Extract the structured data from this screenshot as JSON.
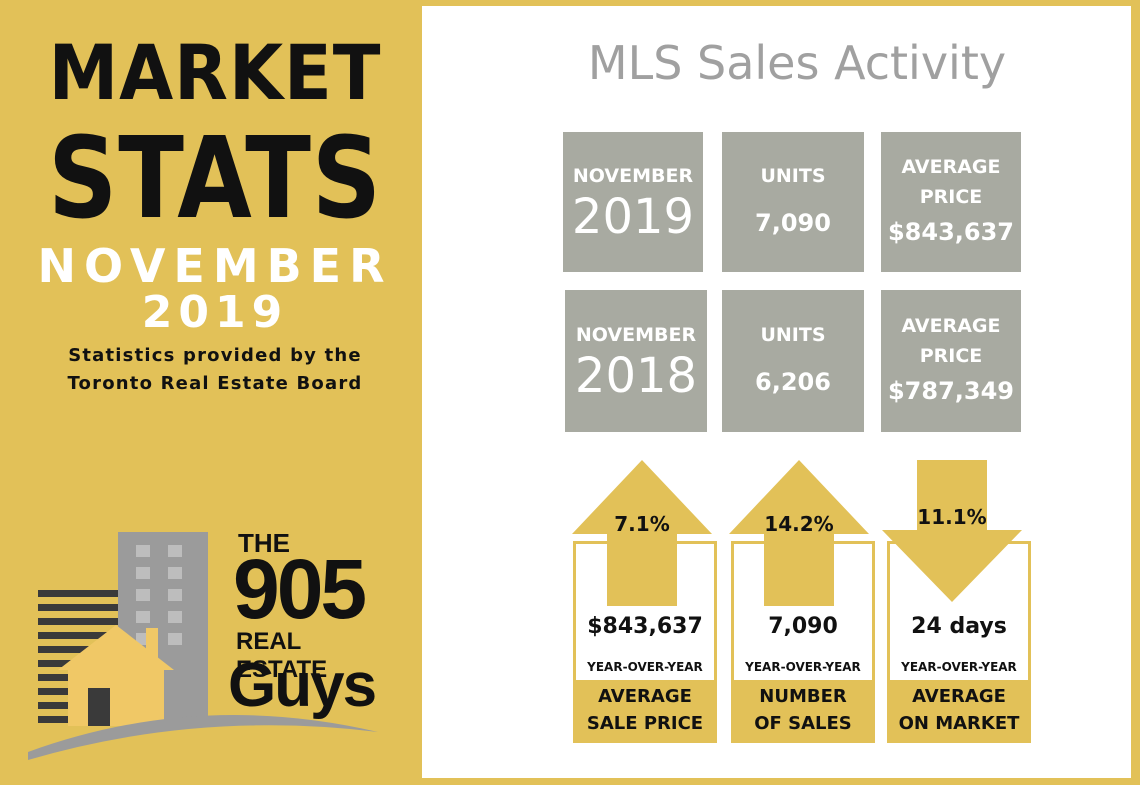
{
  "banner": {
    "title_line1": "MARKET",
    "title_line2": "STATS",
    "month": "NOVEMBER",
    "year": "2019",
    "source_line1": "Statistics provided by the",
    "source_line2": "Toronto Real Estate Board"
  },
  "logo": {
    "line1": "THE",
    "line2": "905",
    "line3": "REAL ESTATE",
    "line4": "Guys",
    "icon": "house-building-icon"
  },
  "heading": "MLS Sales Activity",
  "rows": [
    {
      "month": "NOVEMBER",
      "year": "2019",
      "units_label": "UNITS",
      "units": "7,090",
      "price_label_1": "AVERAGE",
      "price_label_2": "PRICE",
      "price": "$843,637"
    },
    {
      "month": "NOVEMBER",
      "year": "2018",
      "units_label": "UNITS",
      "units": "6,206",
      "price_label_1": "AVERAGE",
      "price_label_2": "PRICE",
      "price": "$787,349"
    }
  ],
  "changes": [
    {
      "direction": "up",
      "percent": "7.1%",
      "value": "$843,637",
      "yoy": "YEAR-OVER-YEAR",
      "label_1": "AVERAGE",
      "label_2": "SALE PRICE"
    },
    {
      "direction": "up",
      "percent": "14.2%",
      "value": "7,090",
      "yoy": "YEAR-OVER-YEAR",
      "label_1": "NUMBER",
      "label_2": "OF SALES"
    },
    {
      "direction": "down",
      "percent": "11.1%",
      "value": "24 days",
      "yoy": "YEAR-OVER-YEAR",
      "label_1": "AVERAGE",
      "label_2": "ON MARKET"
    }
  ],
  "colors": {
    "gold": "#e2c158",
    "grey_box": "#a8aaa1",
    "heading": "#a0a0a0"
  }
}
